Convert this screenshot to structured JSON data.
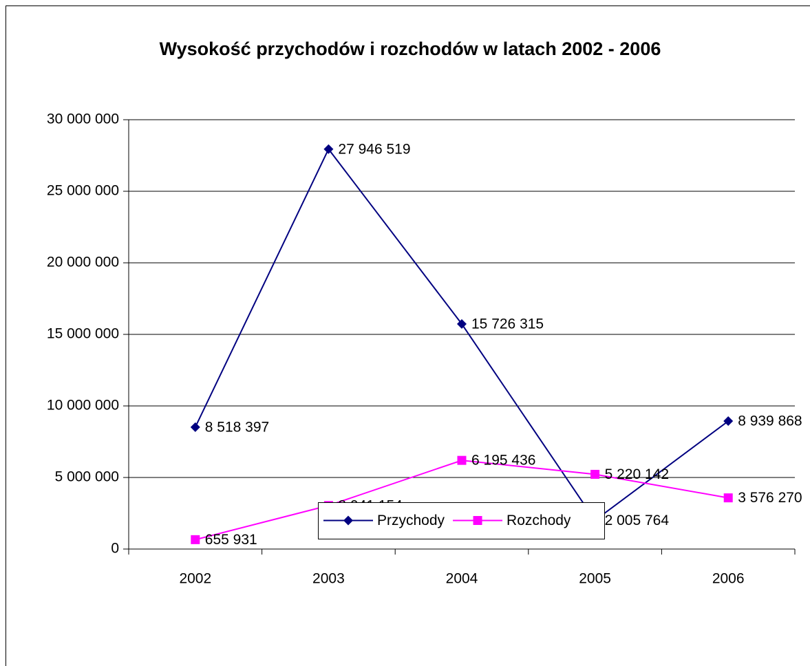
{
  "chart_data": {
    "type": "line",
    "title": "Wysokość przychodów i rozchodów w latach 2002 - 2006",
    "categories": [
      "2002",
      "2003",
      "2004",
      "2005",
      "2006"
    ],
    "series": [
      {
        "name": "Przychody",
        "color": "#000080",
        "marker": "diamond",
        "values": [
          8518397,
          27946519,
          15726315,
          2005764,
          8939868
        ],
        "value_labels": [
          "8 518 397",
          "27 946 519",
          "15 726 315",
          "2 005 764",
          "8 939 868"
        ]
      },
      {
        "name": "Rozchody",
        "color": "#ff00ff",
        "marker": "square",
        "values": [
          655931,
          3041154,
          6195436,
          5220142,
          3576270
        ],
        "value_labels": [
          "655 931",
          "3 041 154",
          "6 195 436",
          "5 220 142",
          "3 576 270"
        ]
      }
    ],
    "ylim": [
      0,
      30000000
    ],
    "yticks": [
      0,
      {
        "value": 5000000,
        "label": "5 000 000"
      },
      {
        "value": 10000000,
        "label": "10 000 000"
      },
      {
        "value": 15000000,
        "label": "15 000 000"
      },
      {
        "value": 20000000,
        "label": "20 000 000"
      },
      {
        "value": 25000000,
        "label": "25 000 000"
      },
      {
        "value": 30000000,
        "label": "30 000 000"
      }
    ],
    "grid": true,
    "legend": "bottom"
  }
}
